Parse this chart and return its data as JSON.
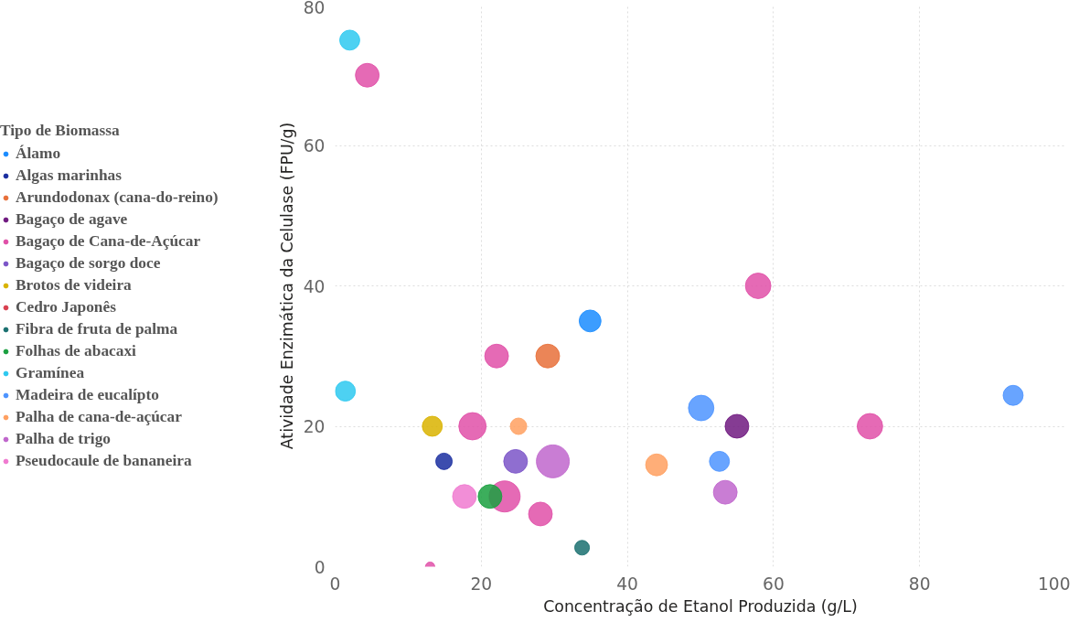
{
  "chart_data": {
    "type": "bubble",
    "xlabel": "Concentração de Etanol Produzida (g/L)",
    "ylabel": "Atividade Enzimática da Celulase (FPU/g)",
    "legend_title": "Tipo de Biomassa",
    "xlim": [
      0,
      100
    ],
    "ylim": [
      0,
      80
    ],
    "xticks": [
      0,
      20,
      40,
      60,
      80,
      100
    ],
    "yticks": [
      0,
      20,
      40,
      60,
      80
    ],
    "grid": true,
    "legend": "left",
    "series": [
      {
        "name": "Álamo",
        "color": "#1a8cff",
        "x": [
          34.9
        ],
        "values": [
          35
        ],
        "sizes": [
          0.44
        ]
      },
      {
        "name": "Algas marinhas",
        "color": "#1a2ea0",
        "x": [
          14.9
        ],
        "values": [
          15
        ],
        "sizes": [
          0.25
        ]
      },
      {
        "name": "Arundodonax (cana-do-reino)",
        "color": "#e8703a",
        "x": [
          29.1
        ],
        "values": [
          30
        ],
        "sizes": [
          0.52
        ]
      },
      {
        "name": "Bagaço de agave",
        "color": "#701a80",
        "x": [
          55
        ],
        "values": [
          20
        ],
        "sizes": [
          0.52
        ]
      },
      {
        "name": "Bagaço de Cana-de-Açúcar",
        "color": "#e050a8",
        "x": [
          4.4,
          22.1,
          18.8,
          23.2,
          28.1,
          57.9,
          73.2,
          13
        ],
        "values": [
          70,
          30,
          20,
          10,
          7.5,
          40,
          20,
          0
        ],
        "sizes": [
          0.52,
          0.52,
          0.69,
          0.89,
          0.52,
          0.6,
          0.6,
          0.08
        ]
      },
      {
        "name": "Bagaço de sorgo doce",
        "color": "#7b55c8",
        "x": [
          24.7
        ],
        "values": [
          15
        ],
        "sizes": [
          0.52
        ]
      },
      {
        "name": "Brotos de videira",
        "color": "#d9b300",
        "x": [
          13.3
        ],
        "values": [
          20
        ],
        "sizes": [
          0.37
        ]
      },
      {
        "name": "Cedro Japonês",
        "color": "#d94050"
      },
      {
        "name": "Fibra de fruta de palma",
        "color": "#1a7070",
        "x": [
          33.8
        ],
        "values": [
          2.7
        ],
        "sizes": [
          0.2
        ]
      },
      {
        "name": "Folhas de abacaxi",
        "color": "#1aa040",
        "x": [
          21.2
        ],
        "values": [
          10
        ],
        "sizes": [
          0.52
        ]
      },
      {
        "name": "Gramínea",
        "color": "#2ec9f0",
        "x": [
          2.0,
          1.4
        ],
        "values": [
          75,
          25
        ],
        "sizes": [
          0.37,
          0.37
        ]
      },
      {
        "name": "Madeira de eucalípto",
        "color": "#4d94ff",
        "x": [
          50.1,
          52.6,
          92.8
        ],
        "values": [
          22.6,
          15,
          24.4
        ],
        "sizes": [
          0.6,
          0.37,
          0.37
        ]
      },
      {
        "name": "Palha de cana-de-açúcar",
        "color": "#ffa060",
        "x": [
          25.1,
          44
        ],
        "values": [
          20,
          14.5
        ],
        "sizes": [
          0.25,
          0.44
        ]
      },
      {
        "name": "Palha de trigo",
        "color": "#c066cc",
        "x": [
          29.8,
          53.4
        ],
        "values": [
          15,
          10.6
        ],
        "sizes": [
          1,
          0.52
        ]
      },
      {
        "name": "Pseudocaule de bananeira",
        "color": "#f07ad0",
        "x": [
          17.7
        ],
        "values": [
          10
        ],
        "sizes": [
          0.52
        ]
      }
    ]
  }
}
